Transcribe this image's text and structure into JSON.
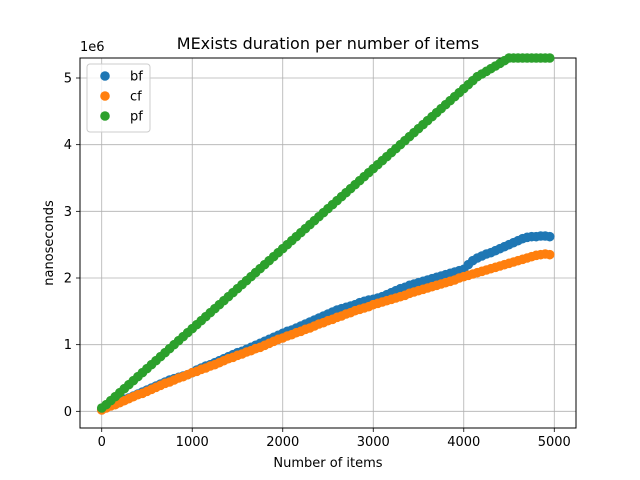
{
  "chart_data": {
    "type": "scatter",
    "title": "MExists duration per number of items",
    "xlabel": "Number of items",
    "ylabel": "nanoseconds",
    "y_offset_label": "1e6",
    "xlim": [
      -240,
      5240
    ],
    "ylim": [
      -0.25,
      5.3
    ],
    "y_scale_multiplier": 1000000,
    "xticks": [
      0,
      1000,
      2000,
      3000,
      4000,
      5000
    ],
    "xtick_labels": [
      "0",
      "1000",
      "2000",
      "3000",
      "4000",
      "5000"
    ],
    "yticks": [
      0,
      1,
      2,
      3,
      4,
      5
    ],
    "ytick_labels": [
      "0",
      "1",
      "2",
      "3",
      "4",
      "5"
    ],
    "grid": true,
    "legend_position": "upper-left",
    "x_start": 0,
    "x_step": 50,
    "series": [
      {
        "name": "bf",
        "color": "#1f77b4",
        "values": [
          0.03,
          0.06,
          0.09,
          0.12,
          0.15,
          0.18,
          0.2,
          0.23,
          0.26,
          0.29,
          0.32,
          0.35,
          0.38,
          0.41,
          0.44,
          0.47,
          0.49,
          0.51,
          0.53,
          0.55,
          0.58,
          0.62,
          0.65,
          0.68,
          0.7,
          0.73,
          0.76,
          0.79,
          0.82,
          0.85,
          0.88,
          0.9,
          0.93,
          0.96,
          0.99,
          1.02,
          1.05,
          1.08,
          1.11,
          1.14,
          1.17,
          1.2,
          1.22,
          1.25,
          1.28,
          1.31,
          1.34,
          1.37,
          1.4,
          1.43,
          1.46,
          1.49,
          1.52,
          1.54,
          1.56,
          1.58,
          1.6,
          1.63,
          1.65,
          1.67,
          1.68,
          1.7,
          1.72,
          1.75,
          1.78,
          1.81,
          1.84,
          1.86,
          1.89,
          1.91,
          1.93,
          1.95,
          1.97,
          1.99,
          2.01,
          2.03,
          2.05,
          2.07,
          2.09,
          2.11,
          2.13,
          2.2,
          2.26,
          2.3,
          2.33,
          2.36,
          2.38,
          2.41,
          2.44,
          2.47,
          2.5,
          2.53,
          2.56,
          2.59,
          2.61,
          2.62,
          2.62,
          2.63,
          2.63,
          2.62
        ]
      },
      {
        "name": "cf",
        "color": "#ff7f0e",
        "values": [
          0.02,
          0.05,
          0.08,
          0.1,
          0.13,
          0.16,
          0.19,
          0.22,
          0.25,
          0.27,
          0.3,
          0.33,
          0.36,
          0.39,
          0.42,
          0.44,
          0.47,
          0.5,
          0.52,
          0.55,
          0.58,
          0.6,
          0.63,
          0.65,
          0.68,
          0.7,
          0.73,
          0.76,
          0.79,
          0.81,
          0.84,
          0.86,
          0.89,
          0.91,
          0.94,
          0.96,
          0.99,
          1.02,
          1.05,
          1.08,
          1.1,
          1.13,
          1.15,
          1.18,
          1.2,
          1.23,
          1.25,
          1.28,
          1.31,
          1.33,
          1.36,
          1.38,
          1.41,
          1.43,
          1.46,
          1.48,
          1.51,
          1.53,
          1.55,
          1.57,
          1.6,
          1.62,
          1.64,
          1.66,
          1.68,
          1.7,
          1.72,
          1.74,
          1.77,
          1.79,
          1.81,
          1.83,
          1.85,
          1.87,
          1.89,
          1.91,
          1.93,
          1.95,
          1.97,
          2.0,
          2.02,
          2.04,
          2.06,
          2.08,
          2.1,
          2.12,
          2.14,
          2.16,
          2.18,
          2.2,
          2.22,
          2.24,
          2.26,
          2.28,
          2.3,
          2.32,
          2.34,
          2.35,
          2.36,
          2.35
        ]
      },
      {
        "name": "pf",
        "color": "#2ca02c",
        "values": [
          0.05,
          0.1,
          0.16,
          0.22,
          0.28,
          0.34,
          0.4,
          0.46,
          0.52,
          0.58,
          0.64,
          0.7,
          0.76,
          0.82,
          0.88,
          0.94,
          1.0,
          1.06,
          1.12,
          1.18,
          1.24,
          1.3,
          1.36,
          1.42,
          1.48,
          1.54,
          1.6,
          1.66,
          1.72,
          1.78,
          1.84,
          1.9,
          1.96,
          2.02,
          2.08,
          2.14,
          2.2,
          2.26,
          2.32,
          2.38,
          2.44,
          2.5,
          2.56,
          2.62,
          2.68,
          2.74,
          2.8,
          2.86,
          2.92,
          2.98,
          3.04,
          3.1,
          3.16,
          3.22,
          3.28,
          3.34,
          3.4,
          3.46,
          3.52,
          3.58,
          3.64,
          3.7,
          3.76,
          3.82,
          3.88,
          3.94,
          4.0,
          4.06,
          4.12,
          4.18,
          4.24,
          4.3,
          4.36,
          4.42,
          4.48,
          4.54,
          4.6,
          4.66,
          4.72,
          4.78,
          4.84,
          4.9,
          4.96,
          5.02,
          5.06,
          5.1,
          5.14,
          5.18,
          5.22,
          5.26,
          5.3,
          5.3,
          5.3,
          5.3,
          5.3,
          5.3,
          5.3,
          5.3,
          5.3,
          5.3
        ]
      }
    ]
  }
}
